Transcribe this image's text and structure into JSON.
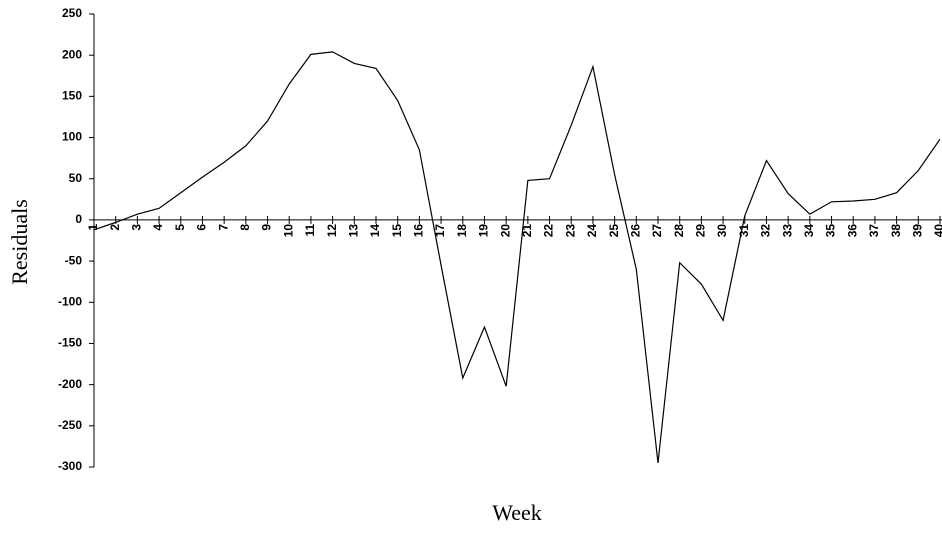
{
  "chart_data": {
    "type": "line",
    "x_label": "Week",
    "y_label": "Residuals",
    "x": [
      1,
      2,
      3,
      4,
      5,
      6,
      7,
      8,
      9,
      10,
      11,
      12,
      13,
      14,
      15,
      16,
      17,
      18,
      19,
      20,
      21,
      22,
      23,
      24,
      25,
      26,
      27,
      28,
      29,
      30,
      31,
      32,
      33,
      34,
      35,
      36,
      37,
      38,
      39,
      40
    ],
    "xlim": [
      1,
      40
    ],
    "series": [
      {
        "color": "#000000",
        "values": [
          -12,
          -3,
          7,
          14,
          33,
          52,
          70,
          90,
          120,
          165,
          201,
          204,
          190,
          184,
          145,
          85,
          -55,
          -192,
          -130,
          -202,
          48,
          50,
          115,
          186,
          55,
          -60,
          -295,
          -52,
          -78,
          -122,
          5,
          72,
          32,
          7,
          22,
          23,
          25,
          33,
          60,
          98
        ]
      }
    ],
    "ylim": [
      -300,
      250
    ],
    "yticks": [
      250,
      200,
      150,
      100,
      50,
      0,
      -50,
      -100,
      -150,
      -200,
      -250,
      -300
    ]
  }
}
